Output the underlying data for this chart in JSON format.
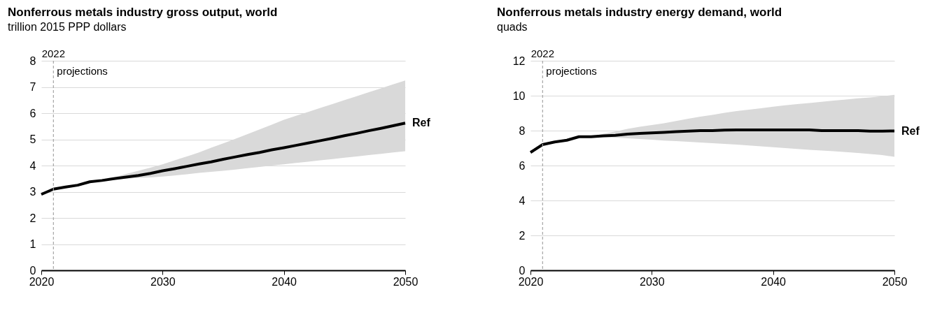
{
  "chart_data": [
    {
      "type": "line",
      "title": "Nonferrous metals industry gross output, world",
      "subtitle": "trillion 2015 PPP dollars",
      "xlim": [
        2020,
        2050
      ],
      "xticks": [
        2020,
        2030,
        2040,
        2050
      ],
      "ylim": [
        0,
        8
      ],
      "yticks": [
        0,
        1,
        2,
        3,
        4,
        5,
        6,
        7,
        8
      ],
      "grid": "y",
      "ref_lines": [
        {
          "axis": "x",
          "value": 2021,
          "line_style": "dashed",
          "color": "#a6a6a6"
        }
      ],
      "annotations": [
        "2022",
        "projections"
      ],
      "series": [
        {
          "name": "Ref",
          "color": "#000000",
          "x": [
            2020,
            2021,
            2022,
            2023,
            2024,
            2025,
            2026,
            2027,
            2028,
            2029,
            2030,
            2031,
            2032,
            2033,
            2034,
            2035,
            2036,
            2037,
            2038,
            2039,
            2040,
            2041,
            2042,
            2043,
            2044,
            2045,
            2046,
            2047,
            2048,
            2049,
            2050
          ],
          "values": [
            2.9,
            3.1,
            3.18,
            3.25,
            3.38,
            3.43,
            3.5,
            3.56,
            3.62,
            3.7,
            3.8,
            3.88,
            3.97,
            4.06,
            4.14,
            4.24,
            4.33,
            4.42,
            4.5,
            4.6,
            4.68,
            4.77,
            4.86,
            4.95,
            5.04,
            5.14,
            5.23,
            5.33,
            5.42,
            5.52,
            5.62
          ],
          "upper": [
            2.9,
            3.1,
            3.18,
            3.25,
            3.38,
            3.43,
            3.55,
            3.68,
            3.8,
            3.92,
            4.05,
            4.2,
            4.35,
            4.5,
            4.68,
            4.85,
            5.02,
            5.2,
            5.38,
            5.56,
            5.75,
            5.9,
            6.05,
            6.2,
            6.35,
            6.5,
            6.65,
            6.8,
            6.95,
            7.1,
            7.25
          ],
          "lower": [
            2.9,
            3.1,
            3.18,
            3.25,
            3.38,
            3.43,
            3.46,
            3.5,
            3.53,
            3.55,
            3.58,
            3.62,
            3.67,
            3.72,
            3.76,
            3.8,
            3.85,
            3.9,
            3.95,
            4.0,
            4.05,
            4.1,
            4.15,
            4.2,
            4.25,
            4.3,
            4.35,
            4.4,
            4.45,
            4.5,
            4.55
          ]
        }
      ]
    },
    {
      "type": "line",
      "title": "Nonferrous metals industry energy demand, world",
      "subtitle": "quads",
      "xlim": [
        2020,
        2050
      ],
      "xticks": [
        2020,
        2030,
        2040,
        2050
      ],
      "ylim": [
        0,
        12
      ],
      "yticks": [
        0,
        2,
        4,
        6,
        8,
        10,
        12
      ],
      "grid": "y",
      "ref_lines": [
        {
          "axis": "x",
          "value": 2021,
          "line_style": "dashed",
          "color": "#a6a6a6"
        }
      ],
      "annotations": [
        "2022",
        "projections"
      ],
      "series": [
        {
          "name": "Ref",
          "color": "#000000",
          "x": [
            2020,
            2021,
            2022,
            2023,
            2024,
            2025,
            2026,
            2027,
            2028,
            2029,
            2030,
            2031,
            2032,
            2033,
            2034,
            2035,
            2036,
            2037,
            2038,
            2039,
            2040,
            2041,
            2042,
            2043,
            2044,
            2045,
            2046,
            2047,
            2048,
            2049,
            2050
          ],
          "values": [
            6.75,
            7.2,
            7.35,
            7.45,
            7.65,
            7.65,
            7.7,
            7.73,
            7.8,
            7.84,
            7.87,
            7.9,
            7.94,
            7.97,
            8.0,
            8.0,
            8.03,
            8.04,
            8.04,
            8.04,
            8.04,
            8.04,
            8.04,
            8.04,
            8.0,
            8.0,
            8.0,
            8.0,
            7.97,
            7.97,
            7.98
          ],
          "upper": [
            6.75,
            7.2,
            7.35,
            7.45,
            7.65,
            7.65,
            7.82,
            7.95,
            8.1,
            8.22,
            8.32,
            8.42,
            8.55,
            8.68,
            8.8,
            8.9,
            9.02,
            9.12,
            9.2,
            9.28,
            9.37,
            9.45,
            9.52,
            9.58,
            9.65,
            9.72,
            9.78,
            9.85,
            9.9,
            9.97,
            10.05
          ],
          "lower": [
            6.75,
            7.2,
            7.35,
            7.45,
            7.65,
            7.65,
            7.62,
            7.6,
            7.56,
            7.52,
            7.48,
            7.43,
            7.4,
            7.36,
            7.32,
            7.28,
            7.24,
            7.2,
            7.15,
            7.1,
            7.05,
            7.0,
            6.95,
            6.9,
            6.86,
            6.82,
            6.77,
            6.72,
            6.66,
            6.6,
            6.5
          ]
        }
      ]
    }
  ]
}
